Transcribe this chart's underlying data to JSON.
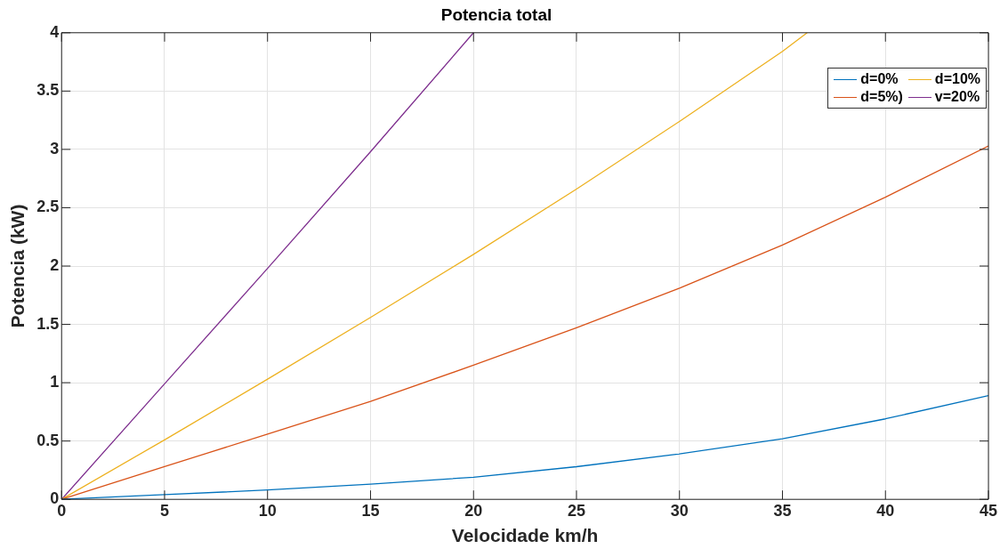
{
  "chart_data": {
    "type": "line",
    "title": "Potencia total",
    "xlabel": "Velocidade km/h",
    "ylabel": "Potencia (kW)",
    "xlim": [
      0,
      45
    ],
    "xticks": [
      0,
      5,
      10,
      15,
      20,
      25,
      30,
      35,
      40,
      45
    ],
    "ylim": [
      0,
      4
    ],
    "yticks": [
      0,
      0.5,
      1,
      1.5,
      2,
      2.5,
      3,
      3.5,
      4
    ],
    "grid": true,
    "legend": "top right",
    "marker": "none",
    "line_style": "solid",
    "series": [
      {
        "name": "d=0%",
        "color": "#0072bd",
        "x": [
          0,
          5,
          10,
          15,
          20,
          25,
          30,
          35,
          40,
          45
        ],
        "values": [
          0,
          0.04,
          0.08,
          0.13,
          0.19,
          0.28,
          0.39,
          0.52,
          0.69,
          0.89
        ]
      },
      {
        "name": "d=5%)",
        "color": "#d95319",
        "x": [
          0,
          5,
          10,
          15,
          20,
          25,
          30,
          35,
          40,
          45
        ],
        "values": [
          0,
          0.28,
          0.56,
          0.84,
          1.15,
          1.47,
          1.81,
          2.18,
          2.59,
          3.03
        ]
      },
      {
        "name": "d=10%",
        "color": "#edb120",
        "x": [
          0,
          5,
          10,
          15,
          20,
          25,
          30,
          35,
          36.2
        ],
        "values": [
          0,
          0.51,
          1.03,
          1.56,
          2.1,
          2.66,
          3.24,
          3.84,
          4
        ]
      },
      {
        "name": "v=20%",
        "color": "#7e2f8e",
        "x": [
          0,
          5,
          10,
          15,
          20
        ],
        "values": [
          0,
          0.99,
          1.98,
          2.98,
          4
        ]
      }
    ]
  }
}
